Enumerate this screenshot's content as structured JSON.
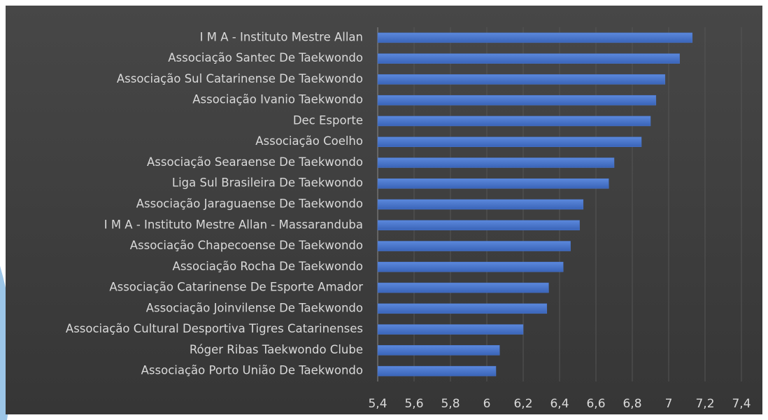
{
  "chart_data": {
    "type": "barh",
    "categories": [
      "I M A - Instituto Mestre Allan",
      "Associação Santec De Taekwondo",
      "Associação Sul Catarinense De Taekwondo",
      "Associação Ivanio Taekwondo",
      "Dec Esporte",
      "Associação Coelho",
      "Associação Searaense De Taekwondo",
      "Liga Sul Brasileira De Taekwondo",
      "Associação Jaraguaense De Taekwondo",
      "I M A - Instituto Mestre Allan - Massaranduba",
      "Associação Chapecoense De Taekwondo",
      "Associação Rocha De Taekwondo",
      "Associação Catarinense De Esporte Amador",
      "Associação Joinvilense De Taekwondo",
      "Associação Cultural Desportiva Tigres Catarinenses",
      "Róger Ribas Taekwondo Clube",
      "Associação Porto União De Taekwondo"
    ],
    "values": [
      7.13,
      7.06,
      6.98,
      6.93,
      6.9,
      6.85,
      6.7,
      6.67,
      6.53,
      6.51,
      6.46,
      6.42,
      6.34,
      6.33,
      6.2,
      6.07,
      6.05
    ],
    "color": "#4a78d0",
    "xlim": [
      5.4,
      7.4
    ],
    "xticks": [
      {
        "value": 5.4,
        "label": "5,4"
      },
      {
        "value": 5.6,
        "label": "5,6"
      },
      {
        "value": 5.8,
        "label": "5,8"
      },
      6,
      {
        "value": 6.2,
        "label": "6,2"
      },
      {
        "value": 6.4,
        "label": "6,4"
      },
      {
        "value": 6.6,
        "label": "6,6"
      },
      {
        "value": 6.8,
        "label": "6,8"
      },
      7,
      {
        "value": 7.2,
        "label": "7,2"
      },
      {
        "value": 7.4,
        "label": "7,4"
      }
    ],
    "grid": true
  }
}
